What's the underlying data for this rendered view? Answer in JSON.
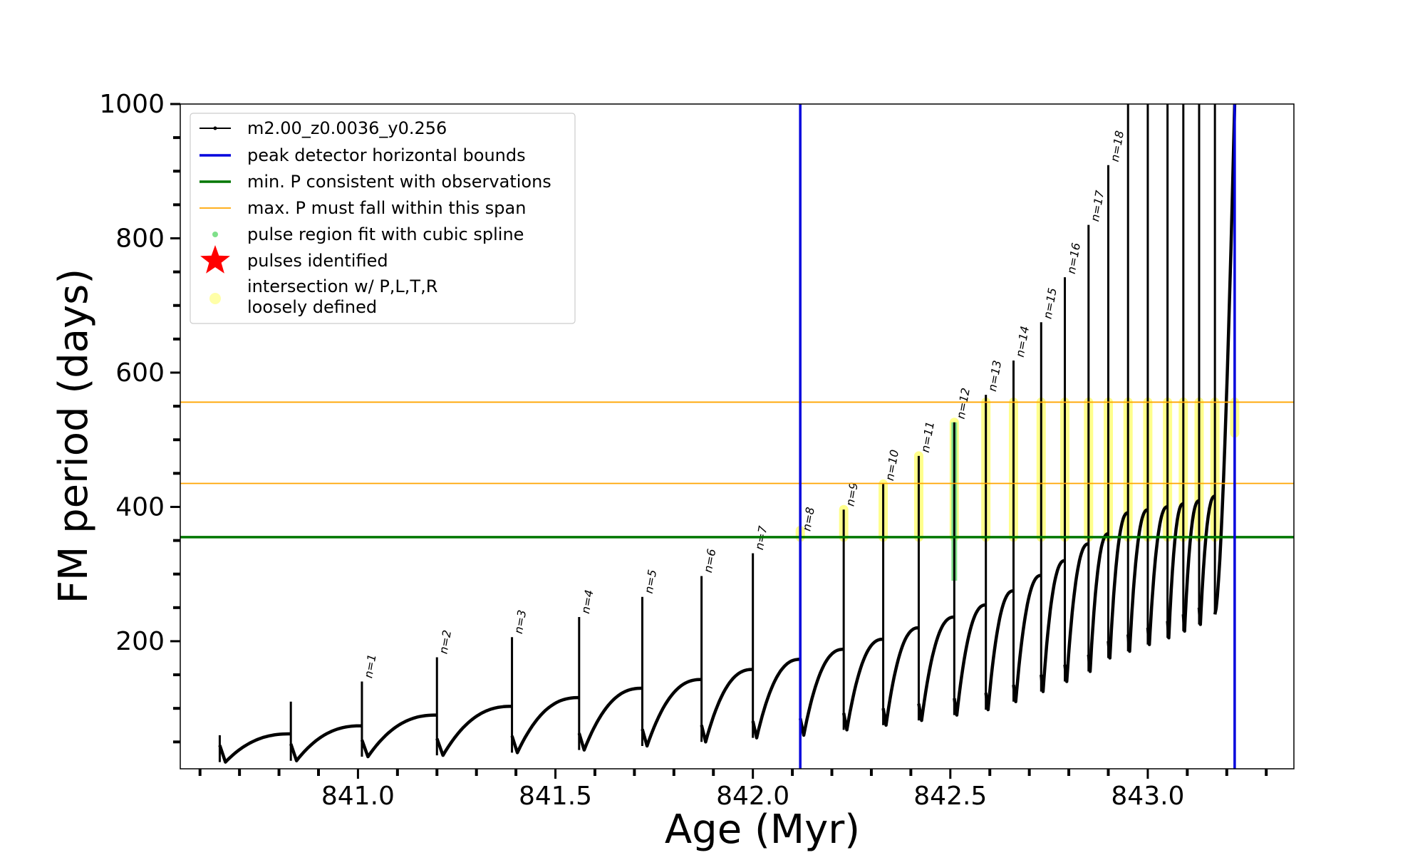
{
  "chart_data": {
    "type": "line",
    "title": "",
    "xlabel": "Age (Myr)",
    "ylabel": "FM period (days)",
    "xlim": [
      840.55,
      843.37
    ],
    "ylim": [
      10,
      1000
    ],
    "x_ticks": [
      841.0,
      841.5,
      842.0,
      842.5,
      843.0
    ],
    "x_tick_labels": [
      "841.0",
      "841.5",
      "842.0",
      "842.5",
      "843.0"
    ],
    "y_ticks": [
      200,
      400,
      600,
      800,
      1000
    ],
    "y_tick_labels": [
      "200",
      "400",
      "600",
      "800",
      "1000"
    ],
    "x_minor_step": 0.1,
    "y_minor_step": 50,
    "grid": false,
    "legend_position": "top-left",
    "legend": [
      {
        "label": "m2.00_z0.0036_y0.256",
        "color": "#000000",
        "marker": "line-dot"
      },
      {
        "label": "peak detector horizontal bounds",
        "color": "#0000dd",
        "marker": "line"
      },
      {
        "label": "min. P consistent with observations",
        "color": "#007700",
        "marker": "line"
      },
      {
        "label": "max. P must fall within this span",
        "color": "#ffa500",
        "marker": "thin-line"
      },
      {
        "label": "pulse region fit with cubic spline",
        "color": "#7fe08a",
        "marker": "dot"
      },
      {
        "label": "pulses identified",
        "color": "#ff0000",
        "marker": "star"
      },
      {
        "label": "intersection w/ P,L,T,R",
        "color": "#ffff99",
        "marker": "circle"
      },
      {
        "label": "loosely defined",
        "color": "",
        "marker": "none"
      }
    ],
    "peak_detector_bounds": [
      842.12,
      843.22
    ],
    "min_period": 355,
    "max_period_span": [
      435,
      556
    ],
    "pulses": [
      {
        "label": "n=1",
        "x": 841.01,
        "peak": 140,
        "trough": 28,
        "pre": 74
      },
      {
        "label": "n=2",
        "x": 841.2,
        "peak": 176,
        "trough": 30,
        "pre": 90
      },
      {
        "label": "n=3",
        "x": 841.39,
        "peak": 206,
        "trough": 34,
        "pre": 103
      },
      {
        "label": "n=4",
        "x": 841.56,
        "peak": 236,
        "trough": 38,
        "pre": 116
      },
      {
        "label": "n=5",
        "x": 841.72,
        "peak": 266,
        "trough": 44,
        "pre": 130
      },
      {
        "label": "n=6",
        "x": 841.87,
        "peak": 297,
        "trough": 50,
        "pre": 143
      },
      {
        "label": "n=7",
        "x": 842.0,
        "peak": 331,
        "trough": 56,
        "pre": 158
      },
      {
        "label": "n=8",
        "x": 842.12,
        "peak": 359,
        "trough": 60,
        "pre": 173
      },
      {
        "label": "n=9",
        "x": 842.23,
        "peak": 396,
        "trough": 68,
        "pre": 188
      },
      {
        "label": "n=10",
        "x": 842.33,
        "peak": 434,
        "trough": 75,
        "pre": 203
      },
      {
        "label": "n=11",
        "x": 842.42,
        "peak": 476,
        "trough": 82,
        "pre": 220
      },
      {
        "label": "n=12",
        "x": 842.51,
        "peak": 526,
        "trough": 90,
        "pre": 236
      },
      {
        "label": "n=13",
        "x": 842.59,
        "peak": 567,
        "trough": 98,
        "pre": 254
      },
      {
        "label": "n=14",
        "x": 842.66,
        "peak": 618,
        "trough": 110,
        "pre": 275
      },
      {
        "label": "n=15",
        "x": 842.73,
        "peak": 675,
        "trough": 125,
        "pre": 298
      },
      {
        "label": "n=16",
        "x": 842.79,
        "peak": 742,
        "trough": 140,
        "pre": 320
      },
      {
        "label": "n=17",
        "x": 842.85,
        "peak": 820,
        "trough": 155,
        "pre": 345
      },
      {
        "label": "n=18",
        "x": 842.9,
        "peak": 909,
        "trough": 175,
        "pre": 360
      }
    ],
    "late_pulses": [
      {
        "x": 842.95,
        "peak": 1000,
        "trough": 185
      },
      {
        "x": 843.0,
        "peak": 1000,
        "trough": 195
      },
      {
        "x": 843.05,
        "peak": 1000,
        "trough": 205
      },
      {
        "x": 843.09,
        "peak": 1000,
        "trough": 215
      },
      {
        "x": 843.13,
        "peak": 1000,
        "trough": 225
      },
      {
        "x": 843.17,
        "peak": 1000,
        "trough": 240
      }
    ],
    "early_pulses": [
      {
        "x": 840.65,
        "peak": 60,
        "trough": 20,
        "pre": 0
      },
      {
        "x": 840.83,
        "peak": 110,
        "trough": 22,
        "pre": 62
      }
    ],
    "final_rise": {
      "x": 843.22,
      "from": 790,
      "to": 1000
    },
    "spline_region": {
      "x": 842.51,
      "from": 290,
      "to": 526
    },
    "intersection_columns": [
      {
        "x": 842.12,
        "from": 355,
        "to": 365
      },
      {
        "x": 842.23,
        "from": 355,
        "to": 396
      },
      {
        "x": 842.33,
        "from": 355,
        "to": 434
      },
      {
        "x": 842.42,
        "from": 355,
        "to": 476
      },
      {
        "x": 842.51,
        "from": 355,
        "to": 526
      },
      {
        "x": 842.59,
        "from": 355,
        "to": 556
      },
      {
        "x": 842.66,
        "from": 355,
        "to": 556
      },
      {
        "x": 842.73,
        "from": 355,
        "to": 556
      },
      {
        "x": 842.79,
        "from": 355,
        "to": 556
      },
      {
        "x": 842.85,
        "from": 355,
        "to": 556
      },
      {
        "x": 842.9,
        "from": 355,
        "to": 556
      },
      {
        "x": 842.95,
        "from": 355,
        "to": 556
      },
      {
        "x": 843.0,
        "from": 355,
        "to": 556
      },
      {
        "x": 843.05,
        "from": 355,
        "to": 556
      },
      {
        "x": 843.09,
        "from": 355,
        "to": 556
      },
      {
        "x": 843.13,
        "from": 355,
        "to": 556
      },
      {
        "x": 843.17,
        "from": 355,
        "to": 556
      },
      {
        "x": 843.22,
        "from": 510,
        "to": 556
      }
    ]
  }
}
